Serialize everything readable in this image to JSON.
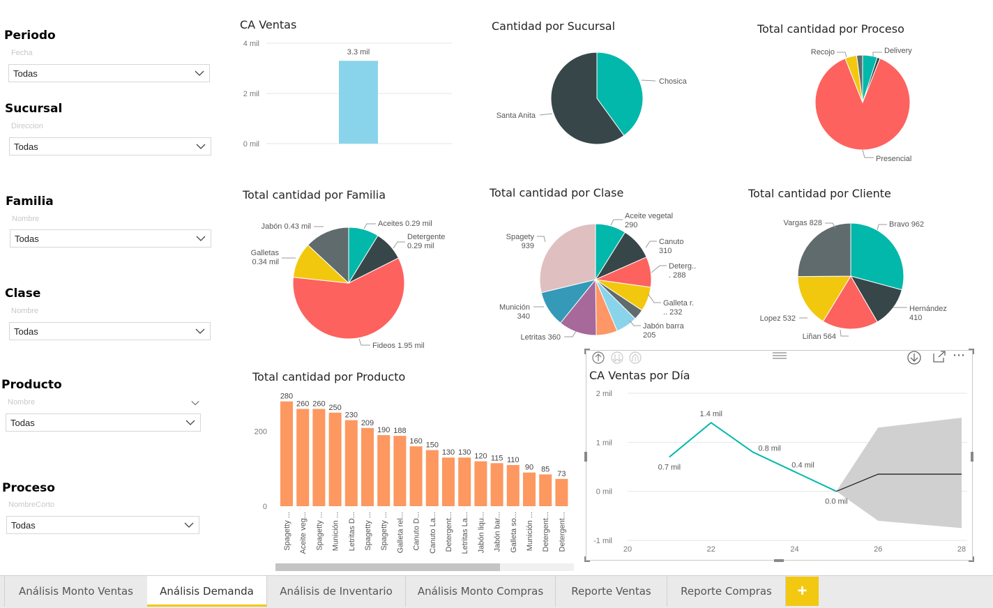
{
  "slicers": [
    {
      "title": "Periodo",
      "subtitle": "Fecha",
      "value": "Todas"
    },
    {
      "title": "Sucursal",
      "subtitle": "Direccion",
      "value": "Todas"
    },
    {
      "title": "Familia",
      "subtitle": "Nombre",
      "value": "Todas"
    },
    {
      "title": "Clase",
      "subtitle": "Nombre",
      "value": "Todas"
    },
    {
      "title": "Producto",
      "subtitle": "Nombre",
      "value": "Todas"
    },
    {
      "title": "Proceso",
      "subtitle": "NombreCorto",
      "value": "Todas"
    }
  ],
  "icons": {
    "chevron": "chevron-down-icon",
    "drill_up": "drill-up-icon",
    "drill_down": "drill-down-icon",
    "expand": "expand-icon",
    "focus": "focus-mode-icon",
    "more": "more-options-icon",
    "grip": "drag-handle-icon",
    "add": "plus-icon"
  },
  "visual_header": {
    "more": "⋯",
    "add": "+"
  },
  "tabs": [
    {
      "label": "Análisis Monto Ventas",
      "active": false
    },
    {
      "label": "Análisis Demanda",
      "active": true
    },
    {
      "label": "Análisis de Inventario",
      "active": false
    },
    {
      "label": "Análisis Monto Compras",
      "active": false
    },
    {
      "label": "Reporte  Ventas",
      "active": false
    },
    {
      "label": "Reporte Compras",
      "active": false
    }
  ],
  "colors": {
    "bar_blue": "#8AD4EB",
    "bar_orange": "#FD9860",
    "teal": "#01B8AA",
    "dark": "#374649",
    "red": "#FD625E",
    "yellow": "#F2C80F",
    "grey": "#5F6B6D",
    "lightblue": "#8AD4EB",
    "orange": "#FE9666",
    "purple": "#A66999",
    "blue": "#3599B8",
    "pink": "#DFBFBF",
    "accent": "#F2C811"
  },
  "chart_data": [
    {
      "id": "ca_ventas",
      "type": "bar",
      "title": "CA Ventas",
      "categories": [
        ""
      ],
      "values": [
        3.3
      ],
      "data_labels": [
        "3.3 mil"
      ],
      "yticks": [
        "4 mil",
        "2 mil",
        "0 mil"
      ],
      "ylim": [
        0,
        4
      ]
    },
    {
      "id": "sucursal",
      "type": "pie",
      "title": "Cantidad por Sucursal",
      "slices": [
        {
          "label": "Chosica",
          "value": 40,
          "color": "#01B8AA"
        },
        {
          "label": "Santa Anita",
          "value": 60,
          "color": "#374649"
        }
      ]
    },
    {
      "id": "proceso",
      "type": "pie",
      "title": "Total cantidad por Proceso",
      "slices": [
        {
          "label": "Delivery",
          "value": 5,
          "color": "#01B8AA"
        },
        {
          "label": "",
          "value": 1,
          "color": "#374649"
        },
        {
          "label": "Presencial",
          "value": 88,
          "color": "#FD625E"
        },
        {
          "label": "",
          "value": 4,
          "color": "#F2C80F"
        },
        {
          "label": "Recojo",
          "value": 2,
          "color": "#5F6B6D"
        }
      ]
    },
    {
      "id": "familia",
      "type": "pie",
      "title": "Total cantidad por Familia",
      "slices": [
        {
          "label": "Aceites 0.29 mil",
          "value": 0.29,
          "color": "#01B8AA"
        },
        {
          "label": "Detergente 0.29 mil",
          "value": 0.29,
          "color": "#374649"
        },
        {
          "label": "Fideos 1.95 mil",
          "value": 1.95,
          "color": "#FD625E"
        },
        {
          "label": "Galletas 0.34 mil",
          "value": 0.34,
          "color": "#F2C80F"
        },
        {
          "label": "Jabón 0.43 mil",
          "value": 0.43,
          "color": "#5F6B6D"
        }
      ]
    },
    {
      "id": "clase",
      "type": "pie",
      "title": "Total cantidad por Clase",
      "slices": [
        {
          "label": "Aceite vegetal 290",
          "value": 290,
          "color": "#01B8AA"
        },
        {
          "label": "Canuto 310",
          "value": 310,
          "color": "#374649"
        },
        {
          "label": "Deterg... 288",
          "value": 288,
          "color": "#FD625E"
        },
        {
          "label": "Galleta r... 232",
          "value": 232,
          "color": "#F2C80F"
        },
        {
          "label": "",
          "value": 100,
          "color": "#5F6B6D"
        },
        {
          "label": "Jabón barra 205",
          "value": 205,
          "color": "#8AD4EB"
        },
        {
          "label": "",
          "value": 200,
          "color": "#FE9666"
        },
        {
          "label": "Letritas 360",
          "value": 360,
          "color": "#A66999"
        },
        {
          "label": "Munición 340",
          "value": 340,
          "color": "#3599B8"
        },
        {
          "label": "Spagety 939",
          "value": 939,
          "color": "#DFBFBF"
        }
      ]
    },
    {
      "id": "cliente",
      "type": "pie",
      "title": "Total cantidad por Cliente",
      "slices": [
        {
          "label": "Bravo 962",
          "value": 962,
          "color": "#01B8AA"
        },
        {
          "label": "Hernández 410",
          "value": 410,
          "color": "#374649"
        },
        {
          "label": "Liñan 564",
          "value": 564,
          "color": "#FD625E"
        },
        {
          "label": "Lopez 532",
          "value": 532,
          "color": "#F2C80F"
        },
        {
          "label": "Vargas 828",
          "value": 828,
          "color": "#5F6B6D"
        }
      ]
    },
    {
      "id": "producto",
      "type": "bar",
      "title": "Total cantidad por Producto",
      "categories": [
        "Spagetty ...",
        "Aceite veg...",
        "Spagetty ...",
        "Munición ...",
        "Letritas D...",
        "Spagetty ...",
        "Spagetty ...",
        "Galleta rel...",
        "Canuto D...",
        "Canuto La...",
        "Detergent...",
        "Letritas La...",
        "Jabón liqu...",
        "Jabón bar...",
        "Galleta so...",
        "Munición ...",
        "Detergent...",
        "Detergent..."
      ],
      "values": [
        280,
        260,
        260,
        250,
        230,
        209,
        190,
        188,
        160,
        150,
        130,
        130,
        120,
        115,
        110,
        90,
        85,
        73
      ],
      "yticks": [
        "200",
        "0"
      ],
      "ylim": [
        0,
        300
      ]
    },
    {
      "id": "ventas_dia",
      "type": "line",
      "title": "CA Ventas por Día",
      "x": [
        21,
        22,
        23,
        24,
        25
      ],
      "values": [
        0.7,
        1.4,
        0.8,
        0.4,
        0.0
      ],
      "data_labels": [
        "0.7 mil",
        "1.4 mil",
        "0.8 mil",
        "0.4 mil",
        "0.0 mil"
      ],
      "forecast": {
        "x": [
          25,
          26,
          28
        ],
        "values": [
          0.0,
          0.35,
          0.35
        ],
        "upper": [
          0.0,
          1.3,
          1.5
        ],
        "lower": [
          0.0,
          -0.6,
          -0.75
        ]
      },
      "xticks": [
        "20",
        "22",
        "24",
        "26",
        "28"
      ],
      "yticks": [
        "2 mil",
        "1 mil",
        "0 mil",
        "-1 mil"
      ],
      "xlim": [
        20,
        28
      ],
      "ylim": [
        -1,
        2
      ]
    }
  ]
}
